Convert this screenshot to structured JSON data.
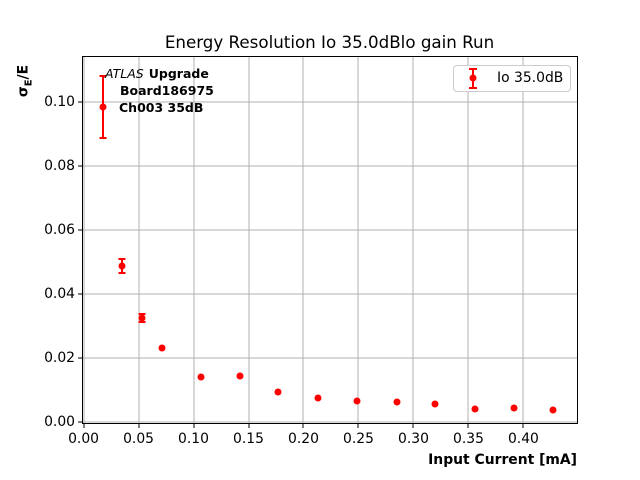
{
  "chart_data": {
    "type": "scatter",
    "title": "Energy Resolution Io 35.0dBlo gain Run",
    "xlabel": "Input Current [mA]",
    "ylabel": "σE/E",
    "ylabel_parts": {
      "sigma": "σ",
      "sub": "E",
      "rest": "/E"
    },
    "grid": true,
    "legend_position": "upper right",
    "xlim": [
      -0.0005,
      0.4487
    ],
    "ylim": [
      -0.0002,
      0.114
    ],
    "x_ticks": [
      0.0,
      0.05,
      0.1,
      0.15,
      0.2,
      0.25,
      0.3,
      0.35,
      0.4
    ],
    "y_ticks": [
      0.0,
      0.02,
      0.04,
      0.06,
      0.08,
      0.1
    ],
    "series": [
      {
        "name": "Io 35.0dB",
        "color": "#ff0000",
        "marker": "circle",
        "x": [
          0.018,
          0.035,
          0.053,
          0.071,
          0.107,
          0.142,
          0.177,
          0.213,
          0.249,
          0.285,
          0.32,
          0.356,
          0.391,
          0.427
        ],
        "y": [
          0.0984,
          0.0488,
          0.0325,
          0.0231,
          0.0141,
          0.0145,
          0.0094,
          0.0075,
          0.0068,
          0.0062,
          0.0056,
          0.0043,
          0.0044,
          0.0038
        ],
        "yerr": [
          0.0097,
          0.0023,
          0.0013,
          0,
          0,
          0,
          0,
          0,
          0,
          0,
          0,
          0,
          0,
          0
        ]
      }
    ]
  },
  "annotation": {
    "experiment": "ATLAS",
    "tag": "Upgrade",
    "board": "Board186975",
    "channel": "Ch003 35dB"
  },
  "colors": {
    "series": "#ff0000",
    "grid": "#b0b0b0",
    "legend_border": "#cccccc",
    "text": "#000000"
  }
}
